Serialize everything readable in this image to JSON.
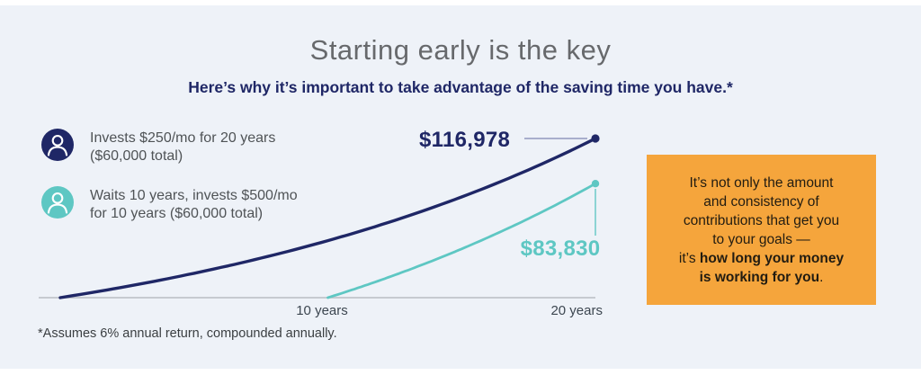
{
  "header": {
    "title": "Starting early is the key",
    "subtitle": "Here’s why it’s important to take advantage of the saving time you have.*"
  },
  "legend": {
    "items": [
      {
        "icon": "person-icon",
        "line1": "Invests $250/mo for 20 years",
        "line2": "($60,000 total)"
      },
      {
        "icon": "person-icon",
        "line1": "Waits 10 years, invests $500/mo",
        "line2": "for 10 years ($60,000 total)"
      }
    ]
  },
  "chart_data": {
    "type": "line",
    "title": "Starting early is the key",
    "subtitle": "Here’s why it’s important to take advantage of the saving time you have.*",
    "xlabel": "",
    "ylabel": "",
    "x_axis": {
      "range_years": [
        0,
        20
      ],
      "ticks": [
        "10 years",
        "20 years"
      ],
      "tick_years": [
        10,
        20
      ]
    },
    "grid": false,
    "legend_position": "left",
    "annual_return_rate": 0.06,
    "series": [
      {
        "name": "Invests $250/mo for 20 years ($60,000 total)",
        "color": "#1f2766",
        "start_year": 0,
        "end_year": 20,
        "end_value": 116978,
        "end_label": "$116,978",
        "monthly_contribution": 250,
        "total_invested": 60000
      },
      {
        "name": "Waits 10 years, invests $500/mo for 10 years ($60,000 total)",
        "color": "#5ec7c3",
        "start_year": 10,
        "end_year": 20,
        "end_value": 83830,
        "end_label": "$83,830",
        "monthly_contribution": 500,
        "total_invested": 60000
      }
    ]
  },
  "callout": {
    "lines": [
      {
        "regular": "It’s not only the amount"
      },
      {
        "regular": "and consistency of"
      },
      {
        "regular": "contributions that get you"
      },
      {
        "regular": "to your goals —"
      },
      {
        "lead": "it’s ",
        "bold": "how long your money"
      },
      {
        "bold": "is working for you",
        "end": "."
      }
    ]
  },
  "footnote": {
    "text": "*Assumes 6% annual return, compounded annually."
  },
  "colors": {
    "background": "#eef2f8",
    "navy": "#1f2766",
    "teal": "#5ec7c3",
    "navy_connector": "#9098bd",
    "orange": "#f5a53c",
    "title_grey": "#67696c",
    "axis_grey": "#b9bdc3"
  }
}
